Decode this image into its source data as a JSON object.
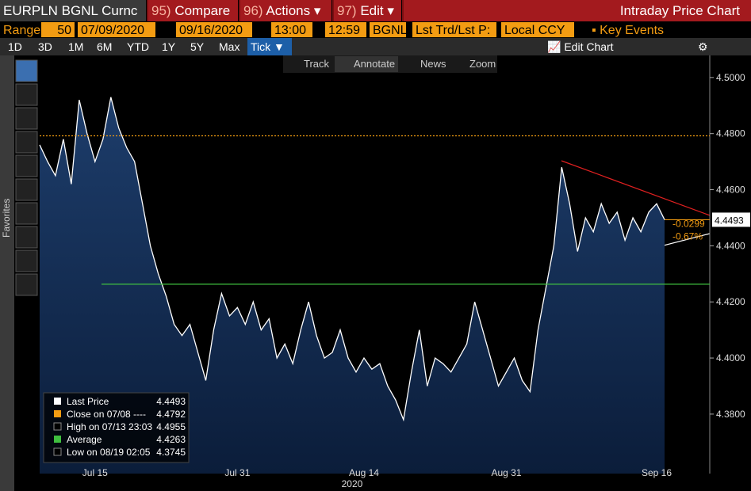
{
  "toolbar": {
    "ticker": "EURPLN BGNL Curnc",
    "menus": [
      {
        "num": "95)",
        "label": "Compare"
      },
      {
        "num": "96)",
        "label": "Actions ▾"
      },
      {
        "num": "97)",
        "label": "Edit ▾"
      }
    ],
    "window_title": "Intraday Price Chart",
    "range_label": "Range",
    "range_value": 50,
    "start_date": "07/09/2020",
    "end_date": "09/16/2020",
    "start_time": "13:00",
    "end_time": "12:59",
    "source": "BGNL",
    "field": "Lst Trd/Lst P:",
    "currency": "Local CCY",
    "key_events": "Key Events",
    "periods": [
      "1D",
      "3D",
      "1M",
      "6M",
      "YTD",
      "1Y",
      "5Y",
      "Max"
    ],
    "tick_mode": "Tick ▼",
    "edit_chart": "Edit Chart",
    "tools": [
      "Track",
      "Annotate",
      "News",
      "Zoom"
    ],
    "favorites": "Favorites"
  },
  "chart_data": {
    "type": "area",
    "categories": [
      null,
      null,
      null,
      null,
      null,
      null,
      null,
      "Jul 15",
      null,
      null,
      null,
      null,
      null,
      null,
      null,
      null,
      null,
      null,
      null,
      null,
      null,
      null,
      null,
      null,
      null,
      "Jul 31",
      null,
      null,
      null,
      null,
      null,
      null,
      null,
      null,
      null,
      null,
      null,
      null,
      null,
      null,
      null,
      "Aug 14",
      null,
      null,
      null,
      null,
      null,
      null,
      null,
      null,
      null,
      null,
      null,
      null,
      null,
      null,
      null,
      null,
      null,
      "Aug 31",
      null,
      null,
      null,
      null,
      null,
      null,
      null,
      null,
      null,
      null,
      null,
      null,
      null,
      null,
      null,
      null,
      null,
      null,
      "Sep 16",
      null
    ],
    "x_axis_label": "2020",
    "series": [
      {
        "name": "Last Price",
        "color": "#ffffff",
        "values": [
          4.476,
          4.47,
          4.465,
          4.478,
          4.462,
          4.492,
          4.48,
          4.47,
          4.478,
          4.493,
          4.482,
          4.475,
          4.47,
          4.455,
          4.44,
          4.43,
          4.422,
          4.412,
          4.408,
          4.412,
          4.402,
          4.392,
          4.41,
          4.423,
          4.415,
          4.418,
          4.412,
          4.42,
          4.41,
          4.414,
          4.4,
          4.405,
          4.398,
          4.41,
          4.42,
          4.408,
          4.4,
          4.402,
          4.41,
          4.4,
          4.395,
          4.4,
          4.396,
          4.398,
          4.39,
          4.385,
          4.378,
          4.395,
          4.41,
          4.39,
          4.4,
          4.398,
          4.395,
          4.4,
          4.405,
          4.42,
          4.41,
          4.4,
          4.39,
          4.395,
          4.4,
          4.392,
          4.388,
          4.41,
          4.425,
          4.44,
          4.468,
          4.455,
          4.438,
          4.45,
          4.445,
          4.455,
          4.448,
          4.452,
          4.442,
          4.45,
          4.445,
          4.452,
          4.455,
          4.4493
        ]
      }
    ],
    "ylim": [
      4.3588,
      4.5073
    ],
    "yticks": [
      {
        "value": 4.38,
        "label": "4.3800"
      },
      {
        "value": 4.4,
        "label": "4.4000"
      },
      {
        "value": 4.42,
        "label": "4.4200"
      },
      {
        "value": 4.44,
        "label": "4.4400"
      },
      {
        "value": 4.46,
        "label": "4.4600"
      },
      {
        "value": 4.48,
        "label": "4.4800"
      },
      {
        "value": 4.5,
        "label": "4.5000"
      }
    ],
    "grid": false,
    "stats": [
      {
        "label": "Last Price",
        "value": 4.4493,
        "color": "#ffffff"
      },
      {
        "label": "Close on 07/08 ----",
        "value": 4.4792,
        "color": "#f39c12",
        "line": true
      },
      {
        "label": "High on 07/13 23:03",
        "value": 4.4955
      },
      {
        "label": "Average",
        "value": 4.4263,
        "color": "#3fbf3f",
        "line": true
      },
      {
        "label": "Low on 08/19 02:05",
        "value": 4.3745
      }
    ],
    "change": -0.0299,
    "change_pct": "-0.67%"
  }
}
